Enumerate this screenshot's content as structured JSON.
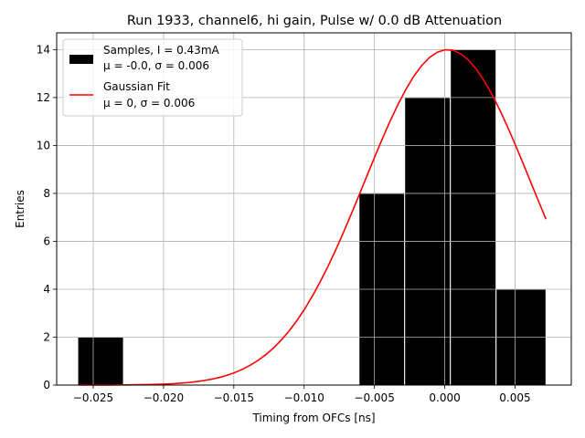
{
  "chart_data": {
    "type": "bar",
    "title": "Run 1933, channel6, hi gain, Pulse w/ 0.0 dB Attenuation",
    "xlabel": "Timing from OFCs [ns]",
    "ylabel": "Entries",
    "xlim": [
      -0.0276,
      0.009
    ],
    "ylim": [
      0,
      14.7
    ],
    "xticks": [
      -0.025,
      -0.02,
      -0.015,
      -0.01,
      -0.005,
      0.0,
      0.005
    ],
    "xtick_labels": [
      "−0.025",
      "−0.020",
      "−0.015",
      "−0.010",
      "−0.005",
      "0.000",
      "0.005"
    ],
    "yticks": [
      0,
      2,
      4,
      6,
      8,
      10,
      12,
      14
    ],
    "ytick_labels": [
      "0",
      "2",
      "4",
      "6",
      "8",
      "10",
      "12",
      "14"
    ],
    "grid": true,
    "bar_color": "#000000",
    "fit_color": "#ff0000",
    "histogram": {
      "series_name": "Samples, I = 0.43mA",
      "bins": [
        {
          "x0": -0.0261,
          "x1": -0.02285,
          "count": 2
        },
        {
          "x0": -0.0061,
          "x1": -0.00285,
          "count": 8
        },
        {
          "x0": -0.00285,
          "x1": 0.0004,
          "count": 12
        },
        {
          "x0": 0.0004,
          "x1": 0.00365,
          "count": 14
        },
        {
          "x0": 0.00365,
          "x1": 0.0072,
          "count": 4
        }
      ]
    },
    "fit": {
      "series_name": "Gaussian Fit",
      "amplitude": 14.0,
      "mean": 0.0002,
      "sigma": 0.0059,
      "x_range": [
        -0.026,
        0.0072
      ]
    },
    "legend": {
      "location": "upper-left",
      "entries": [
        {
          "line1": "Samples, I = 0.43mA",
          "line2": "μ = -0.0, σ = 0.006"
        },
        {
          "line1": "Gaussian Fit",
          "line2": "μ = 0, σ = 0.006"
        }
      ]
    }
  }
}
